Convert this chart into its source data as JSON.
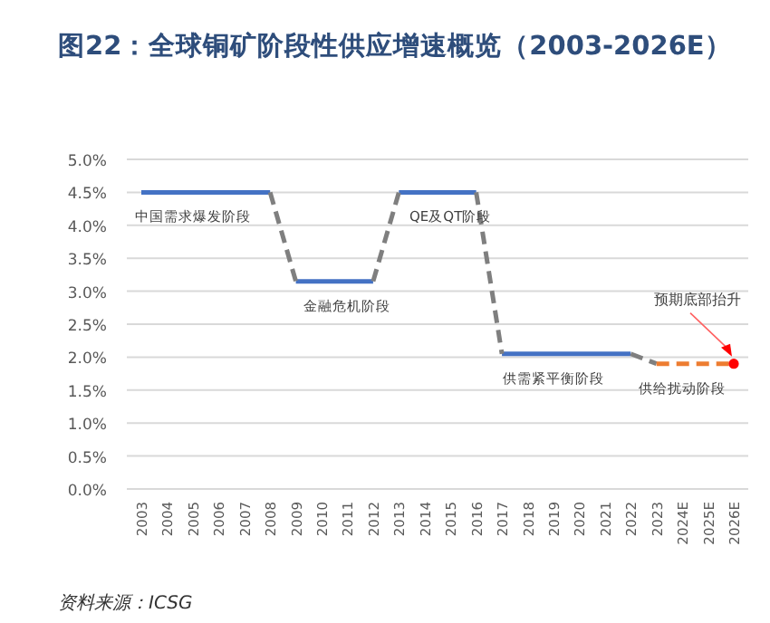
{
  "chart_data": {
    "type": "line",
    "title": "图22：全球铜矿阶段性供应增速概览（2003-2026E）",
    "categories": [
      "2003",
      "2004",
      "2005",
      "2006",
      "2007",
      "2008",
      "2009",
      "2010",
      "2011",
      "2012",
      "2013",
      "2014",
      "2015",
      "2016",
      "2017",
      "2018",
      "2019",
      "2020",
      "2021",
      "2022",
      "2023",
      "2024E",
      "2025E",
      "2026E"
    ],
    "series": [
      {
        "color": "#4472c4",
        "line_style": "solid",
        "values": [
          4.5,
          4.5,
          4.5,
          4.5,
          4.5,
          4.5,
          null,
          null,
          null,
          null,
          4.5,
          4.5,
          4.5,
          4.5,
          null,
          null,
          null,
          null,
          null,
          null,
          null,
          null,
          null,
          null
        ]
      },
      {
        "color": "#4472c4",
        "line_style": "solid",
        "values": [
          null,
          null,
          null,
          null,
          null,
          null,
          3.15,
          3.15,
          3.15,
          3.15,
          null,
          null,
          null,
          null,
          2.05,
          2.05,
          2.05,
          2.05,
          2.05,
          2.05,
          null,
          null,
          null,
          null
        ]
      },
      {
        "color": "#7f7f7f",
        "line_style": "dashed",
        "values": [
          null,
          null,
          null,
          null,
          null,
          4.5,
          3.15,
          null,
          null,
          3.15,
          4.5,
          null,
          null,
          4.5,
          2.05,
          null,
          null,
          null,
          null,
          2.05,
          1.9,
          null,
          null,
          null
        ]
      },
      {
        "color": "#ed7d31",
        "line_style": "dashed",
        "values": [
          null,
          null,
          null,
          null,
          null,
          null,
          null,
          null,
          null,
          null,
          null,
          null,
          null,
          null,
          null,
          null,
          null,
          null,
          null,
          null,
          1.9,
          1.9,
          1.9,
          1.9
        ]
      },
      {
        "type": "scatter",
        "marker": "circle",
        "color": "#ff0000",
        "values": [
          null,
          null,
          null,
          null,
          null,
          null,
          null,
          null,
          null,
          null,
          null,
          null,
          null,
          null,
          null,
          null,
          null,
          null,
          null,
          null,
          null,
          null,
          null,
          1.9
        ]
      }
    ],
    "ylim": [
      0,
      5
    ],
    "yticks": [
      {
        "value": 0,
        "label": "0.0%"
      },
      {
        "value": 0.5,
        "label": "0.5%"
      },
      {
        "value": 1,
        "label": "1.0%"
      },
      {
        "value": 1.5,
        "label": "1.5%"
      },
      {
        "value": 2,
        "label": "2.0%"
      },
      {
        "value": 2.5,
        "label": "2.5%"
      },
      {
        "value": 3,
        "label": "3.0%"
      },
      {
        "value": 3.5,
        "label": "3.5%"
      },
      {
        "value": 4,
        "label": "4.0%"
      },
      {
        "value": 4.5,
        "label": "4.5%"
      },
      {
        "value": 5,
        "label": "5.0%"
      }
    ],
    "grid": "y",
    "annotations": [
      {
        "text": "中国需求爆发阶段",
        "x": "2005",
        "y": 4.5
      },
      {
        "text": "金融危机阶段",
        "x": "2011",
        "y": 3.15
      },
      {
        "text": "QE及QT阶段",
        "x": "2015",
        "y": 4.5
      },
      {
        "text": "供需紧平衡阶段",
        "x": "2019",
        "y": 2.05
      },
      {
        "text": "供给扰动阶段",
        "x": "2024E",
        "y": 1.9
      },
      {
        "text": "预期底部抬升",
        "x": "2026E",
        "y": 1.9
      },
      "资料来源：ICSG"
    ]
  }
}
